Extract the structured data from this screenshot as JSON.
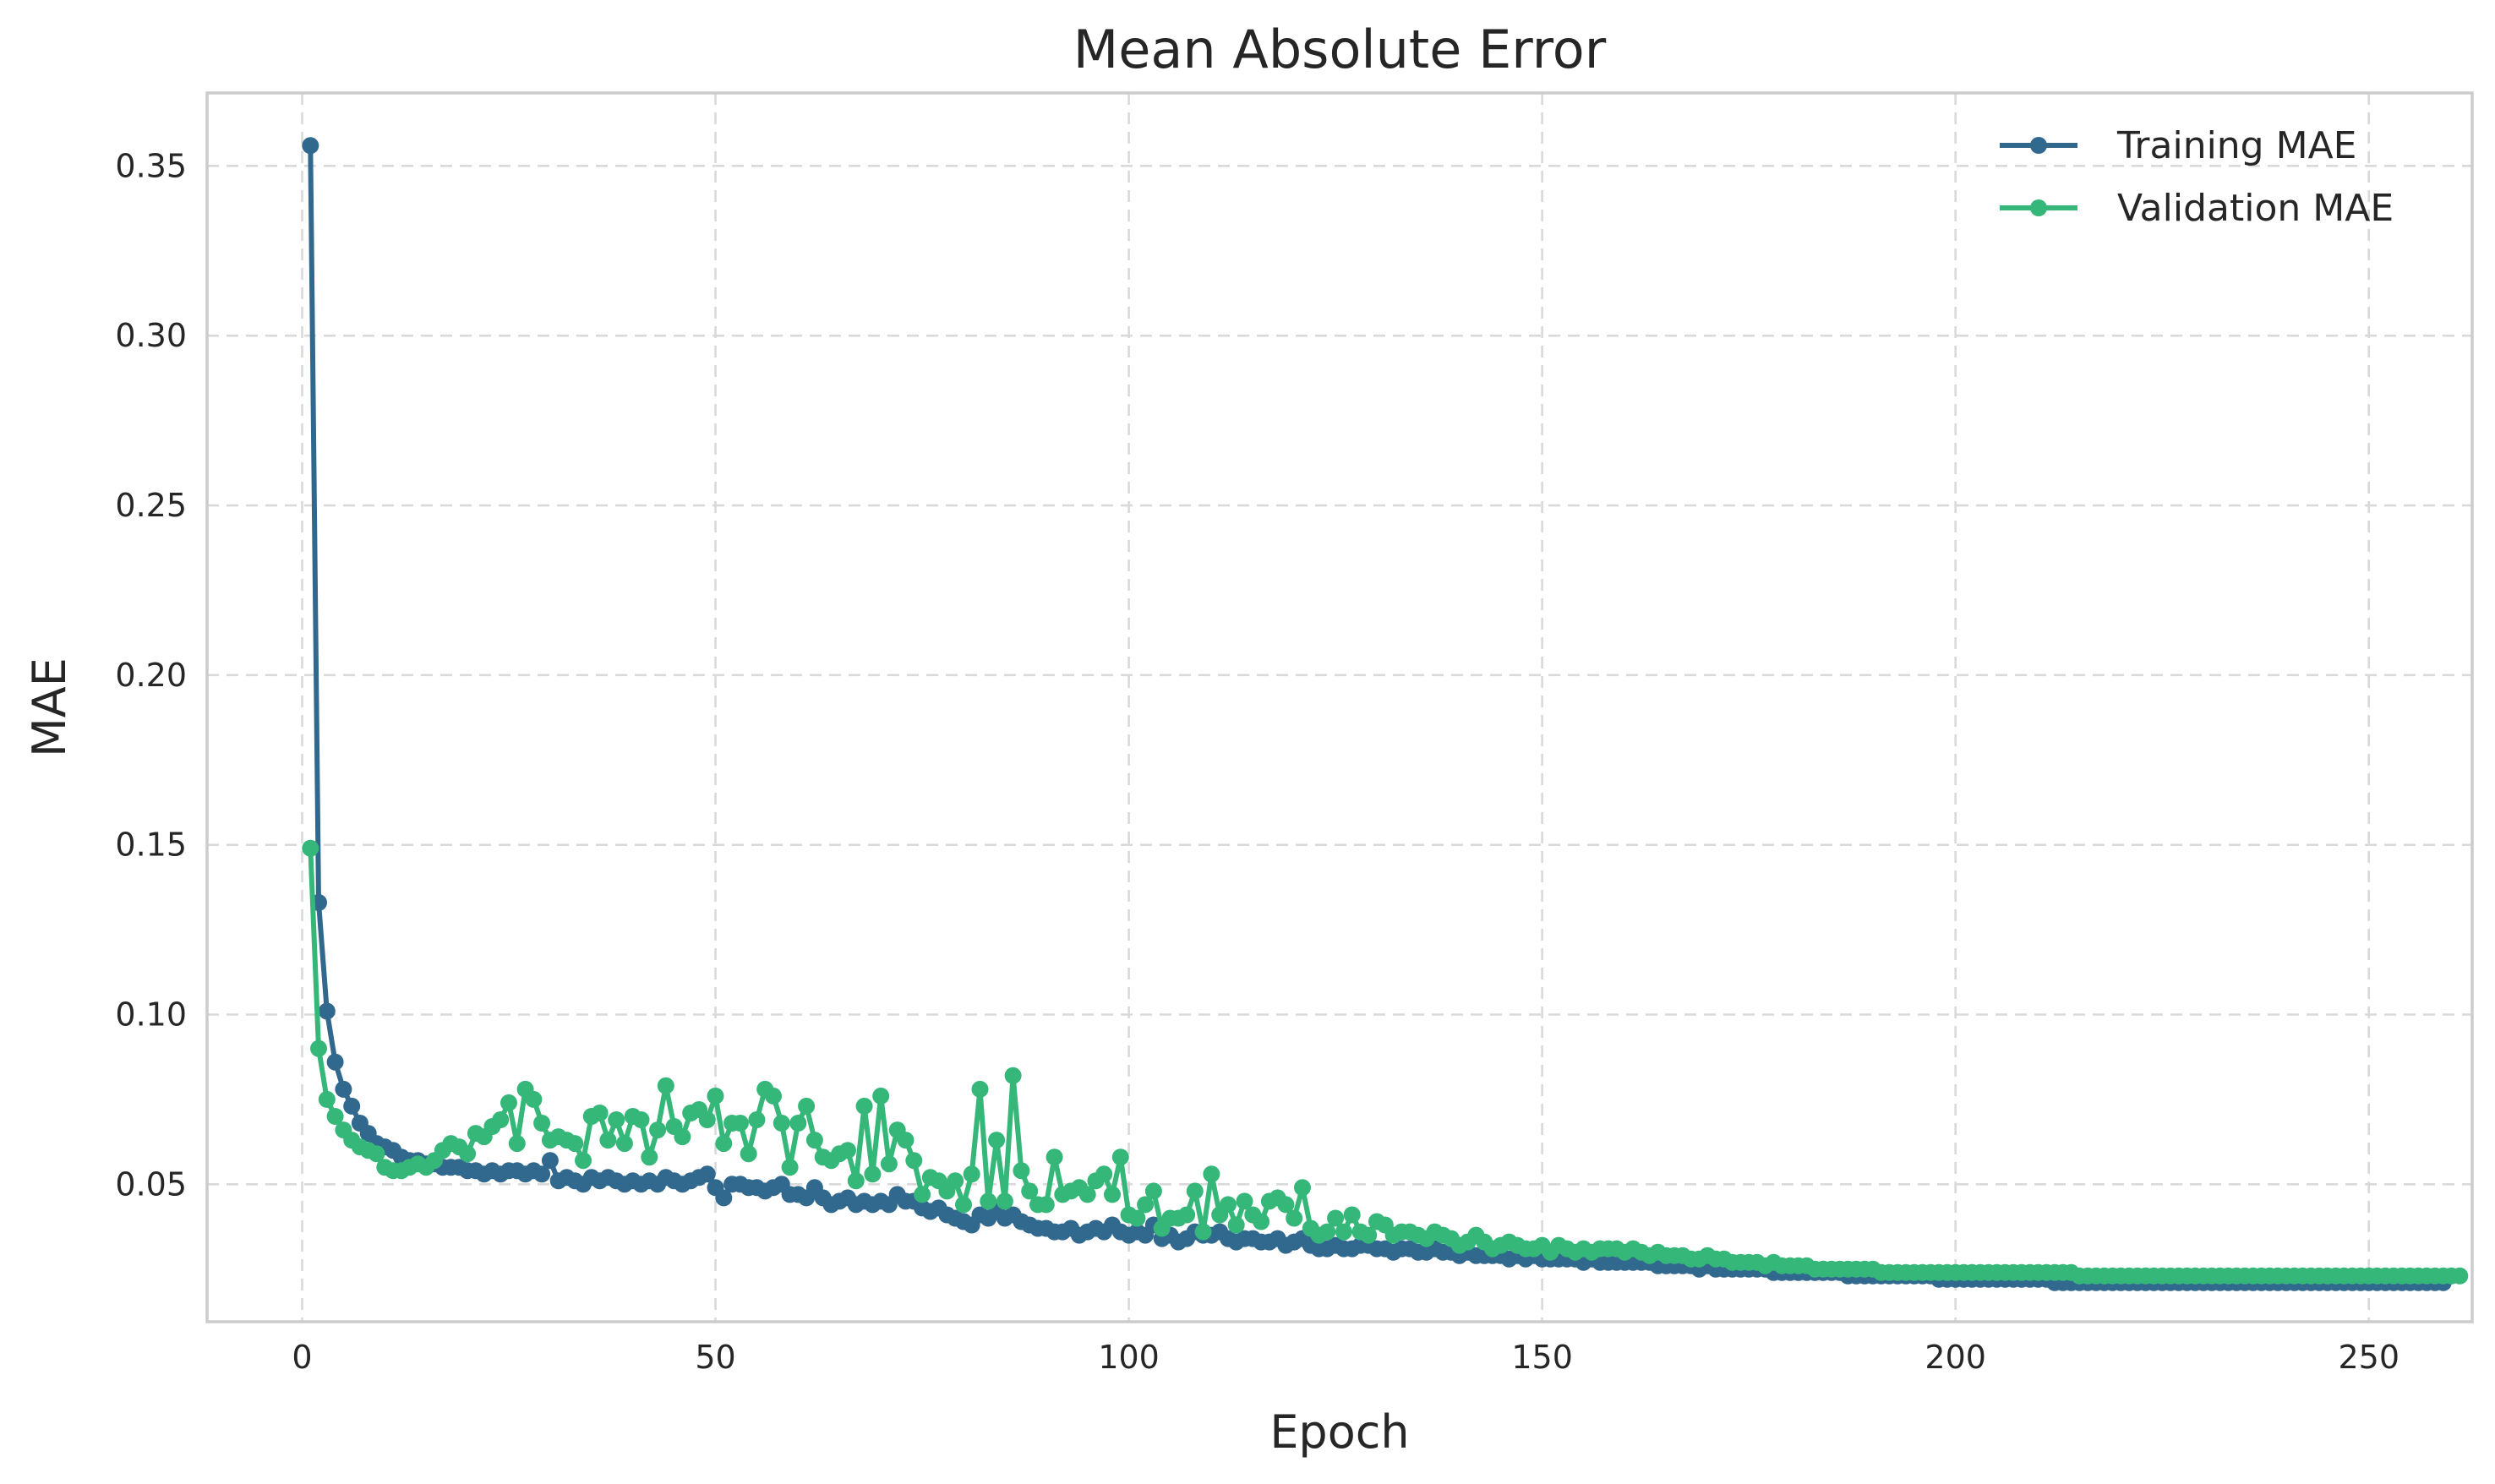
{
  "chart_data": {
    "type": "line",
    "title": "Mean Absolute Error",
    "xlabel": "Epoch",
    "ylabel": "MAE",
    "xlim": [
      -11.5,
      262.5
    ],
    "ylim": [
      0.0095,
      0.3715
    ],
    "xticks": [
      0,
      50,
      100,
      150,
      200,
      250
    ],
    "xtick_labels": [
      "0",
      "50",
      "100",
      "150",
      "200",
      "250"
    ],
    "yticks": [
      0.05,
      0.1,
      0.15,
      0.2,
      0.25,
      0.3,
      0.35
    ],
    "ytick_labels": [
      "0.05",
      "0.10",
      "0.15",
      "0.20",
      "0.25",
      "0.30",
      "0.35"
    ],
    "grid": true,
    "legend_position": "top-right",
    "x_start": 1,
    "series": [
      {
        "name": "Training MAE",
        "color": "#31688e",
        "values": [
          0.356,
          0.133,
          0.101,
          0.086,
          0.078,
          0.073,
          0.068,
          0.065,
          0.062,
          0.061,
          0.06,
          0.058,
          0.057,
          0.057,
          0.056,
          0.056,
          0.055,
          0.055,
          0.055,
          0.054,
          0.054,
          0.053,
          0.054,
          0.053,
          0.054,
          0.054,
          0.053,
          0.054,
          0.053,
          0.057,
          0.051,
          0.052,
          0.051,
          0.05,
          0.052,
          0.051,
          0.052,
          0.051,
          0.05,
          0.051,
          0.05,
          0.051,
          0.05,
          0.052,
          0.051,
          0.05,
          0.051,
          0.052,
          0.053,
          0.049,
          0.046,
          0.05,
          0.05,
          0.049,
          0.049,
          0.048,
          0.049,
          0.05,
          0.047,
          0.047,
          0.046,
          0.049,
          0.046,
          0.044,
          0.045,
          0.046,
          0.044,
          0.045,
          0.044,
          0.045,
          0.044,
          0.047,
          0.045,
          0.045,
          0.043,
          0.042,
          0.043,
          0.041,
          0.04,
          0.039,
          0.038,
          0.041,
          0.04,
          0.042,
          0.04,
          0.041,
          0.039,
          0.038,
          0.037,
          0.037,
          0.036,
          0.036,
          0.037,
          0.035,
          0.036,
          0.037,
          0.036,
          0.038,
          0.036,
          0.035,
          0.036,
          0.035,
          0.038,
          0.034,
          0.035,
          0.033,
          0.034,
          0.036,
          0.035,
          0.035,
          0.036,
          0.034,
          0.033,
          0.034,
          0.034,
          0.033,
          0.033,
          0.034,
          0.032,
          0.033,
          0.034,
          0.032,
          0.031,
          0.031,
          0.032,
          0.031,
          0.031,
          0.032,
          0.032,
          0.031,
          0.031,
          0.03,
          0.031,
          0.031,
          0.03,
          0.03,
          0.031,
          0.03,
          0.03,
          0.029,
          0.03,
          0.029,
          0.029,
          0.029,
          0.029,
          0.028,
          0.029,
          0.028,
          0.029,
          0.028,
          0.028,
          0.028,
          0.028,
          0.028,
          0.027,
          0.028,
          0.027,
          0.027,
          0.027,
          0.027,
          0.027,
          0.027,
          0.027,
          0.026,
          0.026,
          0.026,
          0.026,
          0.026,
          0.025,
          0.026,
          0.025,
          0.025,
          0.025,
          0.025,
          0.025,
          0.025,
          0.025,
          0.024,
          0.024,
          0.024,
          0.024,
          0.024,
          0.024,
          0.024,
          0.024,
          0.024,
          0.023,
          0.023,
          0.023,
          0.023,
          0.023,
          0.023,
          0.023,
          0.023,
          0.023,
          0.023,
          0.023,
          0.022,
          0.022,
          0.022,
          0.022,
          0.022,
          0.022,
          0.022,
          0.022,
          0.022,
          0.022,
          0.022,
          0.022,
          0.022,
          0.022,
          0.021,
          0.021,
          0.021,
          0.021,
          0.021,
          0.021,
          0.021,
          0.021,
          0.021,
          0.021,
          0.021,
          0.021,
          0.021,
          0.021,
          0.021,
          0.021,
          0.021,
          0.021,
          0.021,
          0.021,
          0.021,
          0.021,
          0.021,
          0.021,
          0.021,
          0.021,
          0.021,
          0.021,
          0.021,
          0.021,
          0.021,
          0.021,
          0.021,
          0.021,
          0.021,
          0.021,
          0.021,
          0.021,
          0.021,
          0.021,
          0.021,
          0.021,
          0.021,
          0.021,
          0.021,
          0.021,
          0.021,
          0.021
        ]
      },
      {
        "name": "Validation MAE",
        "color": "#35b779",
        "values": [
          0.149,
          0.09,
          0.075,
          0.07,
          0.066,
          0.063,
          0.061,
          0.06,
          0.059,
          0.055,
          0.054,
          0.054,
          0.055,
          0.056,
          0.055,
          0.057,
          0.06,
          0.062,
          0.061,
          0.059,
          0.065,
          0.064,
          0.067,
          0.069,
          0.074,
          0.062,
          0.078,
          0.075,
          0.068,
          0.063,
          0.064,
          0.063,
          0.062,
          0.057,
          0.07,
          0.071,
          0.063,
          0.069,
          0.062,
          0.07,
          0.069,
          0.058,
          0.066,
          0.079,
          0.067,
          0.064,
          0.071,
          0.072,
          0.069,
          0.076,
          0.062,
          0.068,
          0.068,
          0.059,
          0.069,
          0.078,
          0.076,
          0.068,
          0.055,
          0.068,
          0.073,
          0.063,
          0.058,
          0.057,
          0.059,
          0.06,
          0.051,
          0.073,
          0.053,
          0.076,
          0.056,
          0.066,
          0.063,
          0.057,
          0.047,
          0.052,
          0.051,
          0.048,
          0.051,
          0.044,
          0.053,
          0.078,
          0.045,
          0.063,
          0.045,
          0.082,
          0.054,
          0.048,
          0.044,
          0.044,
          0.058,
          0.047,
          0.048,
          0.049,
          0.047,
          0.051,
          0.053,
          0.047,
          0.058,
          0.041,
          0.04,
          0.044,
          0.048,
          0.037,
          0.04,
          0.04,
          0.041,
          0.048,
          0.036,
          0.053,
          0.041,
          0.044,
          0.038,
          0.045,
          0.041,
          0.039,
          0.045,
          0.046,
          0.044,
          0.04,
          0.049,
          0.037,
          0.035,
          0.036,
          0.04,
          0.036,
          0.041,
          0.036,
          0.035,
          0.039,
          0.038,
          0.035,
          0.036,
          0.036,
          0.035,
          0.034,
          0.036,
          0.035,
          0.034,
          0.032,
          0.033,
          0.035,
          0.033,
          0.031,
          0.032,
          0.033,
          0.032,
          0.031,
          0.031,
          0.032,
          0.03,
          0.032,
          0.031,
          0.03,
          0.031,
          0.03,
          0.031,
          0.031,
          0.031,
          0.03,
          0.031,
          0.03,
          0.029,
          0.03,
          0.029,
          0.029,
          0.029,
          0.028,
          0.028,
          0.029,
          0.028,
          0.028,
          0.027,
          0.027,
          0.027,
          0.027,
          0.026,
          0.027,
          0.026,
          0.026,
          0.026,
          0.026,
          0.025,
          0.025,
          0.025,
          0.025,
          0.025,
          0.025,
          0.025,
          0.025,
          0.024,
          0.024,
          0.024,
          0.024,
          0.024,
          0.024,
          0.024,
          0.024,
          0.024,
          0.024,
          0.024,
          0.024,
          0.024,
          0.024,
          0.024,
          0.024,
          0.024,
          0.024,
          0.024,
          0.024,
          0.024,
          0.024,
          0.024,
          0.024,
          0.023,
          0.023,
          0.023,
          0.023,
          0.023,
          0.023,
          0.023,
          0.023,
          0.023,
          0.023,
          0.023,
          0.023,
          0.023,
          0.023,
          0.023,
          0.023,
          0.023,
          0.023,
          0.023,
          0.023,
          0.023,
          0.023,
          0.023,
          0.023,
          0.023,
          0.023,
          0.023,
          0.023,
          0.023,
          0.023,
          0.023,
          0.023,
          0.023,
          0.023,
          0.023,
          0.023,
          0.023,
          0.023,
          0.023,
          0.023,
          0.023,
          0.023,
          0.023,
          0.023,
          0.023,
          0.023,
          0.023
        ]
      }
    ]
  }
}
